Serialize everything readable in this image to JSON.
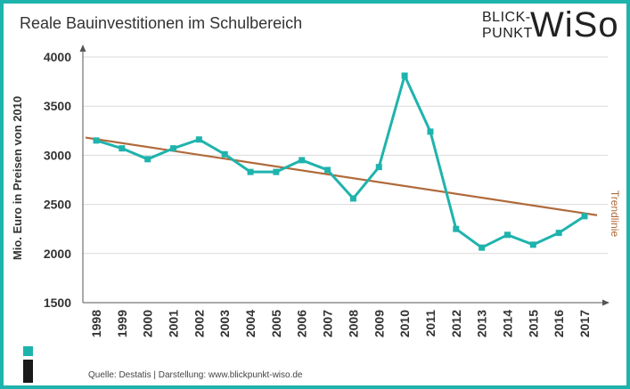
{
  "header": {
    "title": "Reale Bauinvestitionen im Schulbereich",
    "logo_line1": "BLICK-",
    "logo_line2": "PUNKT",
    "logo_big": "WiSo"
  },
  "footer": {
    "source": "Quelle: Destatis  |  Darstellung: www.blickpunkt-wiso.de"
  },
  "colors": {
    "accent": "#1fb3ad",
    "trend": "#b06a3b",
    "dark": "#1a1a1a"
  },
  "chart_data": {
    "type": "line",
    "title": "Reale Bauinvestitionen im Schulbereich",
    "xlabel": "",
    "ylabel": "Mio. Euro in Preisen von 2010",
    "ylim": [
      1500,
      4000
    ],
    "yticks": [
      1500,
      2000,
      2500,
      3000,
      3500,
      4000
    ],
    "grid": true,
    "categories": [
      "1998",
      "1999",
      "2000",
      "2001",
      "2002",
      "2003",
      "2004",
      "2005",
      "2006",
      "2007",
      "2008",
      "2009",
      "2010",
      "2011",
      "2012",
      "2013",
      "2014",
      "2015",
      "2016",
      "2017"
    ],
    "series": [
      {
        "values": [
          3150,
          3070,
          2960,
          3070,
          3160,
          3010,
          2830,
          2830,
          2950,
          2850,
          2560,
          2880,
          3810,
          3240,
          2250,
          2060,
          2190,
          2090,
          2210,
          2380
        ]
      }
    ],
    "trendline": {
      "label": "Trendlinie",
      "start": 3180,
      "end": 2390
    }
  }
}
